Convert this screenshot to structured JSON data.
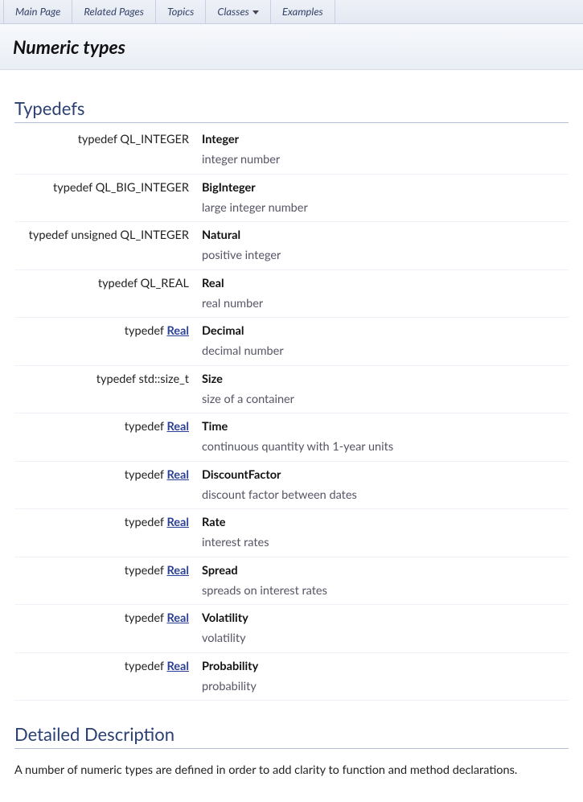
{
  "tabs": [
    {
      "label": "Main Page",
      "has_dropdown": false
    },
    {
      "label": "Related Pages",
      "has_dropdown": false
    },
    {
      "label": "Topics",
      "has_dropdown": false
    },
    {
      "label": "Classes",
      "has_dropdown": true
    },
    {
      "label": "Examples",
      "has_dropdown": false
    }
  ],
  "page_title": "Numeric types",
  "sections": {
    "typedefs_heading": "Typedefs",
    "detailed_heading": "Detailed Description"
  },
  "typedef_prefix": "typedef ",
  "typedefs": [
    {
      "type_plain": "QL_INTEGER",
      "type_link": null,
      "name": "Integer",
      "desc": "integer number"
    },
    {
      "type_plain": "QL_BIG_INTEGER",
      "type_link": null,
      "name": "BigInteger",
      "desc": "large integer number"
    },
    {
      "type_plain": "unsigned QL_INTEGER",
      "type_link": null,
      "name": "Natural",
      "desc": "positive integer"
    },
    {
      "type_plain": "QL_REAL",
      "type_link": null,
      "name": "Real",
      "desc": "real number"
    },
    {
      "type_plain": null,
      "type_link": "Real",
      "name": "Decimal",
      "desc": "decimal number"
    },
    {
      "type_plain": "std::size_t",
      "type_link": null,
      "name": "Size",
      "desc": "size of a container"
    },
    {
      "type_plain": null,
      "type_link": "Real",
      "name": "Time",
      "desc": "continuous quantity with 1-year units"
    },
    {
      "type_plain": null,
      "type_link": "Real",
      "name": "DiscountFactor",
      "desc": "discount factor between dates"
    },
    {
      "type_plain": null,
      "type_link": "Real",
      "name": "Rate",
      "desc": "interest rates"
    },
    {
      "type_plain": null,
      "type_link": "Real",
      "name": "Spread",
      "desc": "spreads on interest rates"
    },
    {
      "type_plain": null,
      "type_link": "Real",
      "name": "Volatility",
      "desc": "volatility"
    },
    {
      "type_plain": null,
      "type_link": "Real",
      "name": "Probability",
      "desc": "probability"
    }
  ],
  "detailed_text": "A number of numeric types are defined in order to add clarity to function and method declarations.",
  "colors": {
    "heading": "#2a3f72",
    "link": "#2a3f96",
    "tab_bg_top": "#eef1f7",
    "tab_bg_bottom": "#e3e8f2",
    "titlebar_top": "#f7f9fc",
    "titlebar_bottom": "#e9edf5",
    "row_sep": "#eef1f8"
  }
}
